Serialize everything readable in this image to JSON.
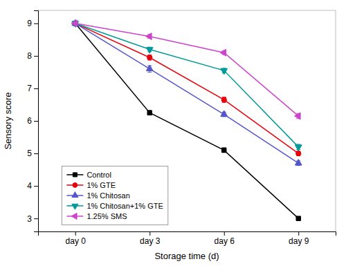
{
  "chart_data": {
    "type": "line",
    "xlabel": "Storage time (d)",
    "ylabel": "Sensory score",
    "categories": [
      "day 0",
      "day 3",
      "day 6",
      "day 9"
    ],
    "series": [
      {
        "name": "Control",
        "color": "#000000",
        "marker": "square",
        "values": [
          9.0,
          6.25,
          5.1,
          3.0
        ],
        "errors": [
          0.0,
          0.07,
          0.07,
          0.0
        ]
      },
      {
        "name": "1% GTE",
        "color": "#e8000a",
        "marker": "circle",
        "values": [
          9.0,
          7.95,
          6.65,
          5.0
        ],
        "errors": [
          0.0,
          0.08,
          0.08,
          0.07
        ]
      },
      {
        "name": "1% Chitosan",
        "color": "#5555cc",
        "marker": "triangle-up",
        "values": [
          9.0,
          7.6,
          6.2,
          4.7
        ],
        "errors": [
          0.0,
          0.1,
          0.07,
          0.07
        ]
      },
      {
        "name": "1% Chitosan+1% GTE",
        "color": "#009999",
        "marker": "triangle-down",
        "values": [
          9.0,
          8.2,
          7.55,
          5.2
        ],
        "errors": [
          0.0,
          0.07,
          0.07,
          0.08
        ]
      },
      {
        "name": "1.25% SMS",
        "color": "#cc44cc",
        "marker": "triangle-left",
        "values": [
          9.0,
          8.6,
          8.1,
          6.15
        ],
        "errors": [
          0.0,
          0.06,
          0.06,
          0.08
        ]
      }
    ],
    "ylim": [
      2.6,
      9.4
    ],
    "yticks": [
      3,
      4,
      5,
      6,
      7,
      8,
      9
    ],
    "legend": "lower left",
    "grid": false
  }
}
